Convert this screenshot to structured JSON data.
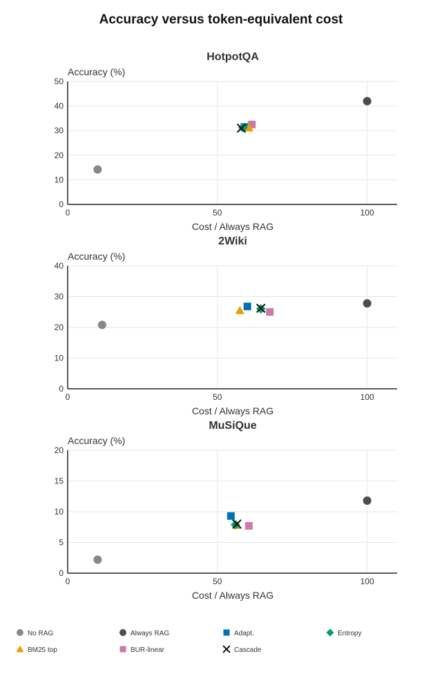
{
  "title": "Accuracy versus token-equivalent cost",
  "legend": [
    {
      "name": "No RAG",
      "color": "#888888",
      "marker": "circle"
    },
    {
      "name": "Always RAG",
      "color": "#4d4d4d",
      "marker": "circle"
    },
    {
      "name": "Adapt.",
      "color": "#0072b2",
      "marker": "square"
    },
    {
      "name": "Entropy",
      "color": "#009e73",
      "marker": "diamond"
    },
    {
      "name": "BM25 top",
      "color": "#e69f00",
      "marker": "triangle"
    },
    {
      "name": "BUR-linear",
      "color": "#cc79a7",
      "marker": "square"
    },
    {
      "name": "Cascade",
      "color": "#111111",
      "marker": "x"
    }
  ],
  "chart_data": [
    {
      "type": "scatter",
      "title": "HotpotQA",
      "xlabel": "Cost / Always RAG",
      "ylabel": "Accuracy (%)",
      "xlim": [
        0,
        110
      ],
      "ylim": [
        0,
        50
      ],
      "xticks": [
        0,
        50,
        100
      ],
      "yticks": [
        0,
        10,
        20,
        30,
        40,
        50
      ],
      "grid": true,
      "series": [
        {
          "name": "No RAG",
          "x": [
            10
          ],
          "y": [
            14.2
          ]
        },
        {
          "name": "Always RAG",
          "x": [
            100
          ],
          "y": [
            42
          ]
        },
        {
          "name": "Adapt.",
          "x": [
            59
          ],
          "y": [
            31.5
          ]
        },
        {
          "name": "Entropy",
          "x": [
            58.5
          ],
          "y": [
            31.2
          ]
        },
        {
          "name": "BM25 top",
          "x": [
            60.5
          ],
          "y": [
            31.2
          ]
        },
        {
          "name": "BUR-linear",
          "x": [
            61.5
          ],
          "y": [
            32.5
          ]
        },
        {
          "name": "Cascade",
          "x": [
            58
          ],
          "y": [
            31
          ]
        }
      ]
    },
    {
      "type": "scatter",
      "title": "2Wiki",
      "xlabel": "Cost / Always RAG",
      "ylabel": "Accuracy (%)",
      "xlim": [
        0,
        110
      ],
      "ylim": [
        0,
        40
      ],
      "xticks": [
        0,
        50,
        100
      ],
      "yticks": [
        0,
        10,
        20,
        30,
        40
      ],
      "grid": true,
      "series": [
        {
          "name": "No RAG",
          "x": [
            11.5
          ],
          "y": [
            20.8
          ]
        },
        {
          "name": "Always RAG",
          "x": [
            100
          ],
          "y": [
            27.8
          ]
        },
        {
          "name": "Adapt.",
          "x": [
            60
          ],
          "y": [
            26.8
          ]
        },
        {
          "name": "Entropy",
          "x": [
            64.5
          ],
          "y": [
            26
          ]
        },
        {
          "name": "BM25 top",
          "x": [
            57.5
          ],
          "y": [
            25.5
          ]
        },
        {
          "name": "BUR-linear",
          "x": [
            67.5
          ],
          "y": [
            25
          ]
        },
        {
          "name": "Cascade",
          "x": [
            64.5
          ],
          "y": [
            26.2
          ]
        }
      ]
    },
    {
      "type": "scatter",
      "title": "MuSiQue",
      "xlabel": "Cost / Always RAG",
      "ylabel": "Accuracy (%)",
      "xlim": [
        0,
        110
      ],
      "ylim": [
        0,
        20
      ],
      "xticks": [
        0,
        50,
        100
      ],
      "yticks": [
        0,
        5,
        10,
        15,
        20
      ],
      "grid": true,
      "series": [
        {
          "name": "No RAG",
          "x": [
            10
          ],
          "y": [
            2.2
          ]
        },
        {
          "name": "Always RAG",
          "x": [
            100
          ],
          "y": [
            11.8
          ]
        },
        {
          "name": "Adapt.",
          "x": [
            54.5
          ],
          "y": [
            9.3
          ]
        },
        {
          "name": "Entropy",
          "x": [
            56
          ],
          "y": [
            7.9
          ]
        },
        {
          "name": "BM25 top",
          "x": [
            56.5
          ],
          "y": [
            7.8
          ]
        },
        {
          "name": "BUR-linear",
          "x": [
            60.5
          ],
          "y": [
            7.7
          ]
        },
        {
          "name": "Cascade",
          "x": [
            56.5
          ],
          "y": [
            8
          ]
        }
      ]
    }
  ]
}
